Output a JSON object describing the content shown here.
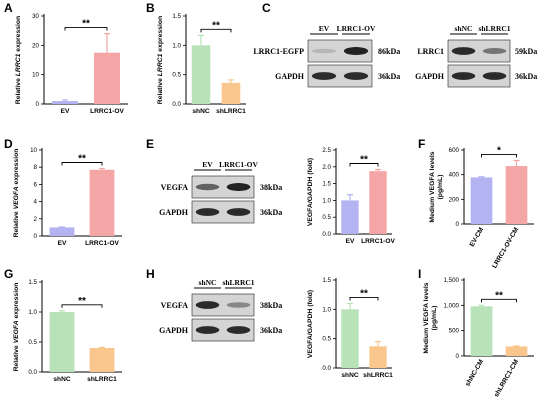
{
  "chart_data": [
    {
      "panel": "A",
      "type": "bar",
      "categories": [
        "EV",
        "LRRC1-OV"
      ],
      "values": [
        1.0,
        17.5
      ],
      "errors": [
        0.4,
        6.5
      ],
      "colors": [
        "#b3b3f2",
        "#f4a6a6"
      ],
      "ylabel_parts": [
        "Relative ",
        "LRRC1",
        " expression"
      ],
      "ylim": [
        0,
        30
      ],
      "yticks": [
        0,
        10,
        20,
        30
      ],
      "ytick_labels": [
        "0",
        "10",
        "20",
        "30"
      ],
      "significance": "**",
      "rotate_labels": false
    },
    {
      "panel": "B",
      "type": "bar",
      "categories": [
        "shNC",
        "shLRRC1"
      ],
      "values": [
        1.0,
        0.36
      ],
      "errors": [
        0.17,
        0.05
      ],
      "colors": [
        "#b8e2b8",
        "#f9c78e"
      ],
      "ylabel_parts": [
        "Relative ",
        "LRRC1",
        " expression"
      ],
      "ylim": [
        0,
        1.5
      ],
      "yticks": [
        0,
        0.5,
        1.0,
        1.5
      ],
      "ytick_labels": [
        "0.0",
        "0.5",
        "1.0",
        "1.5"
      ],
      "significance": "**",
      "rotate_labels": false
    },
    {
      "panel": "D",
      "type": "bar",
      "categories": [
        "EV",
        "LRRC1-OV"
      ],
      "values": [
        1.0,
        7.7
      ],
      "errors": [
        0.05,
        0.15
      ],
      "colors": [
        "#b3b3f2",
        "#f4a6a6"
      ],
      "ylabel_parts": [
        "Relative ",
        "VEGFA",
        " expression"
      ],
      "ylim": [
        0,
        10
      ],
      "yticks": [
        0,
        2,
        4,
        6,
        8,
        10
      ],
      "ytick_labels": [
        "0",
        "2",
        "4",
        "6",
        "8",
        "10"
      ],
      "significance": "**",
      "rotate_labels": false
    },
    {
      "panel": "E",
      "type": "bar",
      "categories": [
        "EV",
        "LRRC1-OV"
      ],
      "values": [
        1.0,
        1.87
      ],
      "errors": [
        0.17,
        0.05
      ],
      "colors": [
        "#b3b3f2",
        "#f4a6a6"
      ],
      "ylabel_parts": [
        "VEGFA/GAPDH (fold)"
      ],
      "ylim": [
        0,
        2.5
      ],
      "yticks": [
        0,
        0.5,
        1.0,
        1.5,
        2.0,
        2.5
      ],
      "ytick_labels": [
        "0.0",
        "0.5",
        "1.0",
        "1.5",
        "2.0",
        "2.5"
      ],
      "significance": "**",
      "rotate_labels": false
    },
    {
      "panel": "F",
      "type": "bar",
      "categories": [
        "EV-CM",
        "LRRC1-OV-CM"
      ],
      "values": [
        378,
        470
      ],
      "errors": [
        5,
        45
      ],
      "colors": [
        "#b3b3f2",
        "#f4a6a6"
      ],
      "ylabel_parts": [
        "Medium VEGFA levels",
        "(pg/mL)"
      ],
      "ylim": [
        0,
        600
      ],
      "yticks": [
        0,
        200,
        400,
        600
      ],
      "ytick_labels": [
        "0",
        "200",
        "400",
        "600"
      ],
      "significance": "*",
      "rotate_labels": true
    },
    {
      "panel": "G",
      "type": "bar",
      "categories": [
        "shNC",
        "shLRRC1"
      ],
      "values": [
        1.0,
        0.4
      ],
      "errors": [
        0.02,
        0.01
      ],
      "colors": [
        "#b8e2b8",
        "#f9c78e"
      ],
      "ylabel_parts": [
        "Relative ",
        "VEGFA",
        " expression"
      ],
      "ylim": [
        0,
        1.5
      ],
      "yticks": [
        0,
        0.5,
        1.0,
        1.5
      ],
      "ytick_labels": [
        "0.0",
        "0.5",
        "1.0",
        "1.5"
      ],
      "significance": "**",
      "rotate_labels": false
    },
    {
      "panel": "H",
      "type": "bar",
      "categories": [
        "shNC",
        "shLRRC1"
      ],
      "values": [
        1.0,
        0.37
      ],
      "errors": [
        0.1,
        0.08
      ],
      "colors": [
        "#b8e2b8",
        "#f9c78e"
      ],
      "ylabel_parts": [
        "VEGFA/GAPDH (fold)"
      ],
      "ylim": [
        0,
        1.5
      ],
      "yticks": [
        0,
        0.5,
        1.0,
        1.5
      ],
      "ytick_labels": [
        "0.0",
        "0.5",
        "1.0",
        "1.5"
      ],
      "significance": "**",
      "rotate_labels": false
    },
    {
      "panel": "I",
      "type": "bar",
      "categories": [
        "shNC-CM",
        "shLRRC1-CM"
      ],
      "values": [
        980,
        190
      ],
      "errors": [
        20,
        10
      ],
      "colors": [
        "#b8e2b8",
        "#f9c78e"
      ],
      "ylabel_parts": [
        "Medium VEGFA levels",
        "(pg/mL)"
      ],
      "ylim": [
        0,
        1500
      ],
      "yticks": [
        0,
        500,
        1000,
        1500
      ],
      "ytick_labels": [
        "0",
        "500",
        "1,000",
        "1,500"
      ],
      "significance": "**",
      "rotate_labels": true
    }
  ],
  "blots": [
    {
      "panel": "C1",
      "lanes": [
        "EV",
        "LRRC1-OV"
      ],
      "rows": [
        {
          "protein": "LRRC1-EGFP",
          "size": "86kDa",
          "intensity": [
            0.1,
            0.9
          ]
        },
        {
          "protein": "GAPDH",
          "size": "36kDa",
          "intensity": [
            0.85,
            0.85
          ]
        }
      ]
    },
    {
      "panel": "C2",
      "lanes": [
        "shNC",
        "shLRRC1"
      ],
      "rows": [
        {
          "protein": "LRRC1",
          "size": "59kDa",
          "intensity": [
            0.85,
            0.45
          ]
        },
        {
          "protein": "GAPDH",
          "size": "36kDa",
          "intensity": [
            0.85,
            0.85
          ]
        }
      ]
    },
    {
      "panel": "E",
      "lanes": [
        "EV",
        "LRRC1-OV"
      ],
      "rows": [
        {
          "protein": "VEGFA",
          "size": "38kDa",
          "intensity": [
            0.55,
            0.9
          ]
        },
        {
          "protein": "GAPDH",
          "size": "36kDa",
          "intensity": [
            0.85,
            0.85
          ]
        }
      ]
    },
    {
      "panel": "H",
      "lanes": [
        "shNC",
        "shLRRC1"
      ],
      "rows": [
        {
          "protein": "VEGFA",
          "size": "38kDa",
          "intensity": [
            0.85,
            0.35
          ]
        },
        {
          "protein": "GAPDH",
          "size": "36kDa",
          "intensity": [
            0.85,
            0.85
          ]
        }
      ]
    }
  ],
  "panel_letters": [
    "A",
    "B",
    "C",
    "D",
    "E",
    "F",
    "G",
    "H",
    "I"
  ]
}
